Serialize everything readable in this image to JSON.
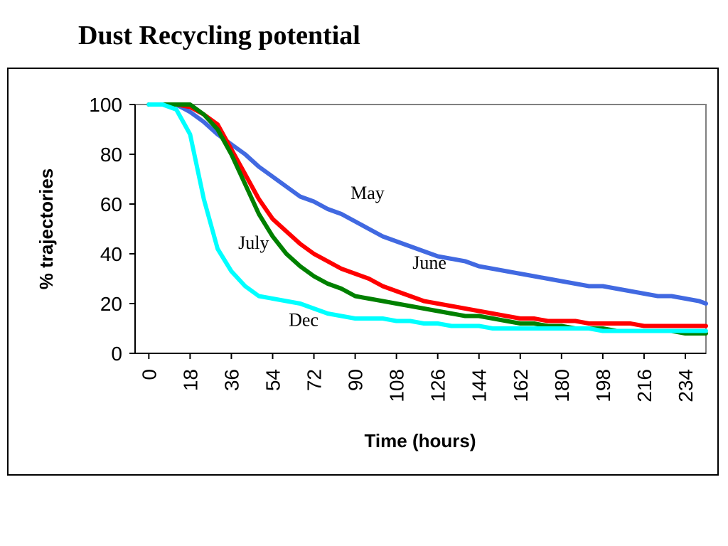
{
  "title": "Dust Recycling potential",
  "chart_data": {
    "type": "line",
    "title": "Dust Recycling potential",
    "xlabel": "Time (hours)",
    "ylabel": "% trajectories",
    "xlim": [
      -6,
      243
    ],
    "ylim": [
      0,
      100
    ],
    "x_ticks": [
      0,
      18,
      36,
      54,
      72,
      90,
      108,
      126,
      144,
      162,
      180,
      198,
      216,
      234
    ],
    "y_ticks": [
      0,
      20,
      40,
      60,
      80,
      100
    ],
    "grid": false,
    "legend": "none",
    "series": [
      {
        "name": "May",
        "color": "#4169E1",
        "points": [
          [
            0,
            100
          ],
          [
            6,
            100
          ],
          [
            12,
            100
          ],
          [
            18,
            97
          ],
          [
            24,
            93
          ],
          [
            30,
            88
          ],
          [
            36,
            84
          ],
          [
            42,
            80
          ],
          [
            48,
            75
          ],
          [
            54,
            71
          ],
          [
            60,
            67
          ],
          [
            66,
            63
          ],
          [
            72,
            61
          ],
          [
            78,
            58
          ],
          [
            84,
            56
          ],
          [
            90,
            53
          ],
          [
            96,
            50
          ],
          [
            102,
            47
          ],
          [
            108,
            45
          ],
          [
            114,
            43
          ],
          [
            120,
            41
          ],
          [
            126,
            39
          ],
          [
            132,
            38
          ],
          [
            138,
            37
          ],
          [
            144,
            35
          ],
          [
            150,
            34
          ],
          [
            156,
            33
          ],
          [
            162,
            32
          ],
          [
            168,
            31
          ],
          [
            174,
            30
          ],
          [
            180,
            29
          ],
          [
            186,
            28
          ],
          [
            192,
            27
          ],
          [
            198,
            27
          ],
          [
            204,
            26
          ],
          [
            210,
            25
          ],
          [
            216,
            24
          ],
          [
            222,
            23
          ],
          [
            228,
            23
          ],
          [
            234,
            22
          ],
          [
            240,
            21
          ],
          [
            243,
            20
          ]
        ]
      },
      {
        "name": "June",
        "color": "#FF0000",
        "points": [
          [
            0,
            100
          ],
          [
            6,
            100
          ],
          [
            12,
            100
          ],
          [
            18,
            99
          ],
          [
            24,
            96
          ],
          [
            30,
            92
          ],
          [
            36,
            82
          ],
          [
            42,
            72
          ],
          [
            48,
            62
          ],
          [
            54,
            54
          ],
          [
            60,
            49
          ],
          [
            66,
            44
          ],
          [
            72,
            40
          ],
          [
            78,
            37
          ],
          [
            84,
            34
          ],
          [
            90,
            32
          ],
          [
            96,
            30
          ],
          [
            102,
            27
          ],
          [
            108,
            25
          ],
          [
            114,
            23
          ],
          [
            120,
            21
          ],
          [
            126,
            20
          ],
          [
            132,
            19
          ],
          [
            138,
            18
          ],
          [
            144,
            17
          ],
          [
            150,
            16
          ],
          [
            156,
            15
          ],
          [
            162,
            14
          ],
          [
            168,
            14
          ],
          [
            174,
            13
          ],
          [
            180,
            13
          ],
          [
            186,
            13
          ],
          [
            192,
            12
          ],
          [
            198,
            12
          ],
          [
            204,
            12
          ],
          [
            210,
            12
          ],
          [
            216,
            11
          ],
          [
            222,
            11
          ],
          [
            228,
            11
          ],
          [
            234,
            11
          ],
          [
            240,
            11
          ],
          [
            243,
            11
          ]
        ]
      },
      {
        "name": "July",
        "color": "#008000",
        "points": [
          [
            0,
            100
          ],
          [
            6,
            100
          ],
          [
            12,
            100
          ],
          [
            18,
            100
          ],
          [
            24,
            96
          ],
          [
            30,
            90
          ],
          [
            36,
            80
          ],
          [
            42,
            68
          ],
          [
            48,
            56
          ],
          [
            54,
            47
          ],
          [
            60,
            40
          ],
          [
            66,
            35
          ],
          [
            72,
            31
          ],
          [
            78,
            28
          ],
          [
            84,
            26
          ],
          [
            90,
            23
          ],
          [
            96,
            22
          ],
          [
            102,
            21
          ],
          [
            108,
            20
          ],
          [
            114,
            19
          ],
          [
            120,
            18
          ],
          [
            126,
            17
          ],
          [
            132,
            16
          ],
          [
            138,
            15
          ],
          [
            144,
            15
          ],
          [
            150,
            14
          ],
          [
            156,
            13
          ],
          [
            162,
            12
          ],
          [
            168,
            12
          ],
          [
            174,
            11
          ],
          [
            180,
            11
          ],
          [
            186,
            10
          ],
          [
            192,
            10
          ],
          [
            198,
            10
          ],
          [
            204,
            9
          ],
          [
            210,
            9
          ],
          [
            216,
            9
          ],
          [
            222,
            9
          ],
          [
            228,
            9
          ],
          [
            234,
            8
          ],
          [
            240,
            8
          ],
          [
            243,
            8
          ]
        ]
      },
      {
        "name": "Dec",
        "color": "#00FFFF",
        "points": [
          [
            0,
            100
          ],
          [
            6,
            100
          ],
          [
            12,
            98
          ],
          [
            18,
            88
          ],
          [
            24,
            62
          ],
          [
            30,
            42
          ],
          [
            36,
            33
          ],
          [
            42,
            27
          ],
          [
            48,
            23
          ],
          [
            54,
            22
          ],
          [
            60,
            21
          ],
          [
            66,
            20
          ],
          [
            72,
            18
          ],
          [
            78,
            16
          ],
          [
            84,
            15
          ],
          [
            90,
            14
          ],
          [
            96,
            14
          ],
          [
            102,
            14
          ],
          [
            108,
            13
          ],
          [
            114,
            13
          ],
          [
            120,
            12
          ],
          [
            126,
            12
          ],
          [
            132,
            11
          ],
          [
            138,
            11
          ],
          [
            144,
            11
          ],
          [
            150,
            10
          ],
          [
            156,
            10
          ],
          [
            162,
            10
          ],
          [
            168,
            10
          ],
          [
            174,
            10
          ],
          [
            180,
            10
          ],
          [
            186,
            10
          ],
          [
            192,
            10
          ],
          [
            198,
            9
          ],
          [
            204,
            9
          ],
          [
            210,
            9
          ],
          [
            216,
            9
          ],
          [
            222,
            9
          ],
          [
            228,
            9
          ],
          [
            234,
            9
          ],
          [
            240,
            9
          ],
          [
            243,
            9
          ]
        ]
      }
    ],
    "annotations": [
      {
        "text": "May",
        "series": "May"
      },
      {
        "text": "June",
        "series": "June"
      },
      {
        "text": "July",
        "series": "July"
      },
      {
        "text": "Dec",
        "series": "Dec"
      }
    ]
  }
}
